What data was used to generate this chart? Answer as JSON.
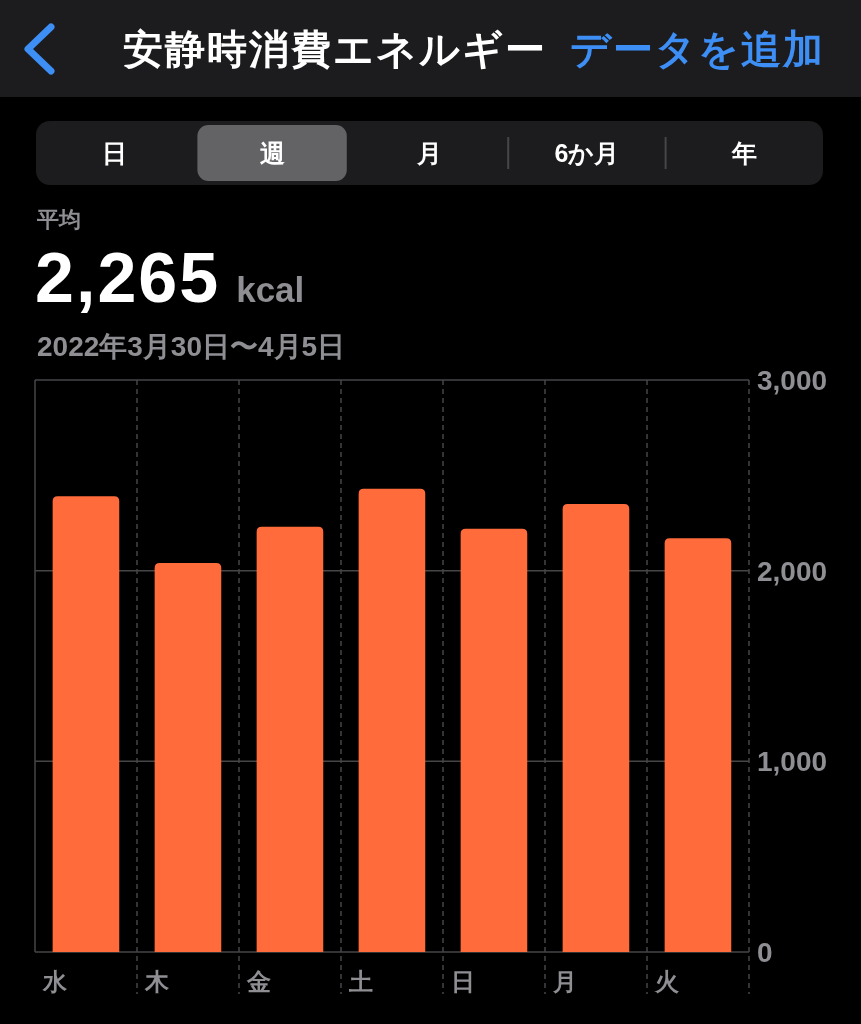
{
  "chart_data": {
    "type": "bar",
    "title": "安静時消費エネルギー",
    "subtitle": "2022年3月30日〜4月5日",
    "categories": [
      "水",
      "木",
      "金",
      "土",
      "日",
      "月",
      "火"
    ],
    "values": [
      2390,
      2040,
      2230,
      2430,
      2220,
      2350,
      2170
    ],
    "color": "#ff6b3b",
    "ylim": [
      0,
      3000
    ],
    "yticks": [
      0,
      {
        "value": 1000,
        "label": "1,000"
      },
      {
        "value": 2000,
        "label": "2,000"
      },
      {
        "value": 3000,
        "label": "3,000"
      }
    ],
    "grid": true,
    "annotations": [
      "データを追加",
      "日",
      "週",
      "月",
      "6か月",
      "年",
      "平均",
      "2,265",
      "kcal"
    ]
  }
}
